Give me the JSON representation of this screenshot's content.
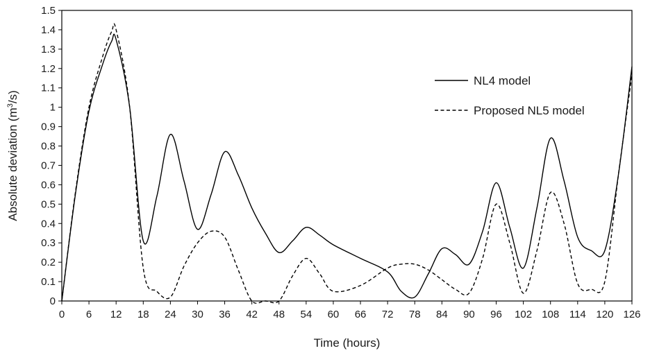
{
  "chart_data": {
    "type": "line",
    "title": "",
    "xlabel": "Time (hours)",
    "ylabel": "Absolute deviation (m³/s)",
    "ylabel_parts": {
      "prefix": "Absolute deviation (m",
      "sup": "3",
      "suffix": "/s)"
    },
    "xlim": [
      0,
      126
    ],
    "ylim": [
      0,
      1.5
    ],
    "x_ticks": [
      0,
      6,
      12,
      18,
      24,
      30,
      36,
      42,
      48,
      54,
      60,
      66,
      72,
      78,
      84,
      90,
      96,
      102,
      108,
      114,
      120,
      126
    ],
    "y_ticks": [
      0,
      0.1,
      0.2,
      0.3,
      0.4,
      0.5,
      0.6,
      0.7,
      0.8,
      0.9,
      1,
      1.1,
      1.2,
      1.3,
      1.4,
      1.5
    ],
    "grid": false,
    "legend_position": "top-right",
    "series": [
      {
        "name": "NL4 model",
        "style": "solid",
        "color": "#000000",
        "x": [
          0,
          3,
          6,
          9,
          11,
          12,
          15,
          18,
          21,
          24,
          27,
          30,
          33,
          36,
          39,
          42,
          45,
          48,
          51,
          54,
          57,
          60,
          66,
          72,
          75,
          78,
          81,
          84,
          87,
          90,
          93,
          96,
          99,
          102,
          105,
          108,
          111,
          114,
          117,
          120,
          123,
          126
        ],
        "y": [
          0,
          0.55,
          0.98,
          1.22,
          1.34,
          1.35,
          1.0,
          0.31,
          0.54,
          0.86,
          0.62,
          0.37,
          0.55,
          0.77,
          0.65,
          0.48,
          0.35,
          0.25,
          0.31,
          0.38,
          0.34,
          0.29,
          0.22,
          0.15,
          0.05,
          0.02,
          0.14,
          0.27,
          0.24,
          0.19,
          0.36,
          0.61,
          0.38,
          0.17,
          0.48,
          0.84,
          0.62,
          0.33,
          0.26,
          0.26,
          0.65,
          1.21
        ]
      },
      {
        "name": "Proposed NL5 model",
        "style": "dashed",
        "color": "#000000",
        "x": [
          0,
          3,
          6,
          9,
          11,
          12,
          15,
          18,
          21,
          24,
          27,
          30,
          33,
          36,
          39,
          42,
          45,
          48,
          51,
          54,
          57,
          60,
          66,
          72,
          75,
          78,
          81,
          84,
          87,
          90,
          93,
          96,
          99,
          102,
          105,
          108,
          111,
          114,
          117,
          120,
          123,
          126
        ],
        "y": [
          0,
          0.56,
          1.0,
          1.26,
          1.39,
          1.4,
          1.0,
          0.17,
          0.05,
          0.02,
          0.18,
          0.3,
          0.36,
          0.33,
          0.16,
          0.0,
          0.0,
          0.0,
          0.13,
          0.22,
          0.14,
          0.05,
          0.08,
          0.17,
          0.19,
          0.19,
          0.16,
          0.11,
          0.06,
          0.04,
          0.22,
          0.5,
          0.3,
          0.04,
          0.26,
          0.56,
          0.4,
          0.09,
          0.06,
          0.1,
          0.65,
          1.17
        ]
      }
    ]
  }
}
